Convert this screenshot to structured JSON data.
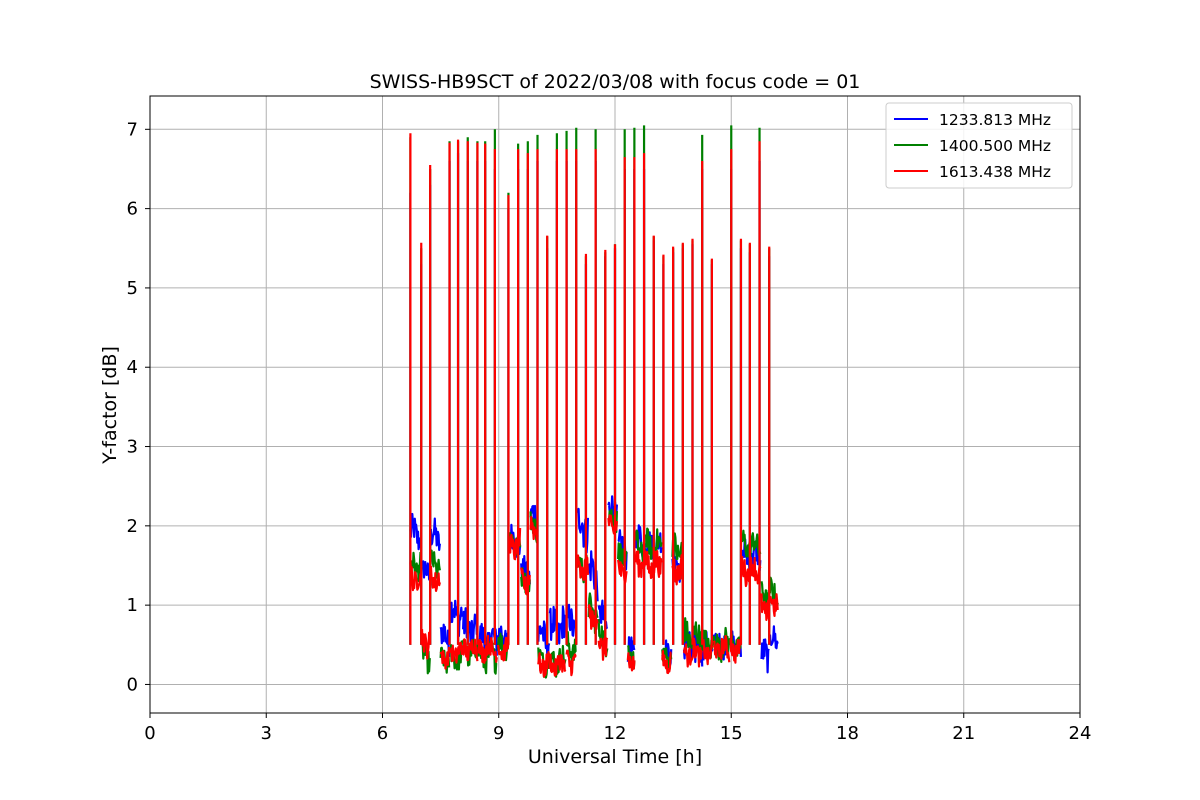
{
  "chart_data": {
    "type": "line",
    "title": "SWISS-HB9SCT of 2022/03/08 with focus code = 01",
    "xlabel": "Universal Time [h]",
    "ylabel": "Y-factor [dB]",
    "xlim": [
      0,
      24
    ],
    "ylim": [
      -0.36,
      7.42
    ],
    "xticks": [
      0,
      3,
      6,
      9,
      12,
      15,
      18,
      21,
      24
    ],
    "yticks": [
      0,
      1,
      2,
      3,
      4,
      5,
      6,
      7
    ],
    "grid": true,
    "legend_position": "top-right",
    "colors": {
      "1233.813 MHz": "#0000ff",
      "1400.500 MHz": "#008000",
      "1613.438 MHz": "#ff0000"
    },
    "series": [
      {
        "name": "1233.813 MHz",
        "color": "#0000ff",
        "segments": [
          {
            "x0": 6.72,
            "x1": 6.98,
            "baseline": 1.9,
            "spread": 0.35
          },
          {
            "x0": 7.02,
            "x1": 7.22,
            "baseline": 1.4,
            "spread": 0.3
          },
          {
            "x0": 7.25,
            "x1": 7.48,
            "baseline": 1.85,
            "spread": 0.35
          },
          {
            "x0": 7.5,
            "x1": 7.72,
            "baseline": 0.6,
            "spread": 0.35
          },
          {
            "x0": 7.75,
            "x1": 8.05,
            "baseline": 0.9,
            "spread": 0.4
          },
          {
            "x0": 8.08,
            "x1": 8.45,
            "baseline": 0.7,
            "spread": 0.4
          },
          {
            "x0": 8.48,
            "x1": 8.95,
            "baseline": 0.55,
            "spread": 0.35
          },
          {
            "x0": 8.98,
            "x1": 9.25,
            "baseline": 0.6,
            "spread": 0.3
          },
          {
            "x0": 9.28,
            "x1": 9.55,
            "baseline": 1.8,
            "spread": 0.35
          },
          {
            "x0": 9.58,
            "x1": 9.8,
            "baseline": 1.4,
            "spread": 0.3
          },
          {
            "x0": 9.82,
            "x1": 10.0,
            "baseline": 2.1,
            "spread": 0.35
          },
          {
            "x0": 10.02,
            "x1": 10.3,
            "baseline": 0.6,
            "spread": 0.45
          },
          {
            "x0": 10.32,
            "x1": 10.72,
            "baseline": 0.7,
            "spread": 0.45
          },
          {
            "x0": 10.75,
            "x1": 11.0,
            "baseline": 0.75,
            "spread": 0.4
          },
          {
            "x0": 11.03,
            "x1": 11.3,
            "baseline": 2.0,
            "spread": 0.5
          },
          {
            "x0": 11.32,
            "x1": 11.55,
            "baseline": 1.4,
            "spread": 0.5
          },
          {
            "x0": 11.58,
            "x1": 11.8,
            "baseline": 0.8,
            "spread": 0.4
          },
          {
            "x0": 11.83,
            "x1": 12.05,
            "baseline": 2.2,
            "spread": 0.3
          },
          {
            "x0": 12.08,
            "x1": 12.3,
            "baseline": 1.7,
            "spread": 0.35
          },
          {
            "x0": 12.33,
            "x1": 12.5,
            "baseline": 0.4,
            "spread": 0.3
          },
          {
            "x0": 12.53,
            "x1": 12.78,
            "baseline": 1.8,
            "spread": 0.35
          },
          {
            "x0": 12.8,
            "x1": 13.2,
            "baseline": 1.75,
            "spread": 0.3
          },
          {
            "x0": 13.22,
            "x1": 13.45,
            "baseline": 0.4,
            "spread": 0.25
          },
          {
            "x0": 13.48,
            "x1": 13.75,
            "baseline": 1.5,
            "spread": 0.3
          },
          {
            "x0": 13.78,
            "x1": 14.25,
            "baseline": 0.45,
            "spread": 0.45
          },
          {
            "x0": 14.28,
            "x1": 14.52,
            "baseline": 0.45,
            "spread": 0.3
          },
          {
            "x0": 14.55,
            "x1": 14.95,
            "baseline": 0.5,
            "spread": 0.3
          },
          {
            "x0": 14.98,
            "x1": 15.25,
            "baseline": 0.5,
            "spread": 0.3
          },
          {
            "x0": 15.28,
            "x1": 15.75,
            "baseline": 1.6,
            "spread": 0.35
          },
          {
            "x0": 15.78,
            "x1": 15.97,
            "baseline": 0.35,
            "spread": 0.35
          },
          {
            "x0": 16.0,
            "x1": 16.2,
            "baseline": 0.55,
            "spread": 0.3
          }
        ]
      },
      {
        "name": "1400.500 MHz",
        "color": "#008000",
        "segments": [
          {
            "x0": 6.72,
            "x1": 6.98,
            "baseline": 1.5,
            "spread": 0.3
          },
          {
            "x0": 7.02,
            "x1": 7.22,
            "baseline": 0.35,
            "spread": 0.3
          },
          {
            "x0": 7.25,
            "x1": 7.48,
            "baseline": 1.5,
            "spread": 0.3
          },
          {
            "x0": 7.5,
            "x1": 7.72,
            "baseline": 0.3,
            "spread": 0.25
          },
          {
            "x0": 7.75,
            "x1": 8.05,
            "baseline": 0.35,
            "spread": 0.3
          },
          {
            "x0": 8.08,
            "x1": 8.45,
            "baseline": 0.4,
            "spread": 0.3
          },
          {
            "x0": 8.48,
            "x1": 8.95,
            "baseline": 0.35,
            "spread": 0.3
          },
          {
            "x0": 8.98,
            "x1": 9.25,
            "baseline": 0.5,
            "spread": 0.3
          },
          {
            "x0": 9.28,
            "x1": 9.55,
            "baseline": 1.8,
            "spread": 0.3
          },
          {
            "x0": 9.58,
            "x1": 9.8,
            "baseline": 1.3,
            "spread": 0.25
          },
          {
            "x0": 9.82,
            "x1": 10.0,
            "baseline": 2.0,
            "spread": 0.3
          },
          {
            "x0": 10.02,
            "x1": 10.3,
            "baseline": 0.3,
            "spread": 0.3
          },
          {
            "x0": 10.32,
            "x1": 10.72,
            "baseline": 0.3,
            "spread": 0.3
          },
          {
            "x0": 10.75,
            "x1": 11.0,
            "baseline": 0.45,
            "spread": 0.3
          },
          {
            "x0": 11.03,
            "x1": 11.3,
            "baseline": 1.5,
            "spread": 0.3
          },
          {
            "x0": 11.32,
            "x1": 11.55,
            "baseline": 0.9,
            "spread": 0.35
          },
          {
            "x0": 11.58,
            "x1": 11.8,
            "baseline": 0.6,
            "spread": 0.35
          },
          {
            "x0": 11.83,
            "x1": 12.05,
            "baseline": 2.1,
            "spread": 0.3
          },
          {
            "x0": 12.08,
            "x1": 12.3,
            "baseline": 1.6,
            "spread": 0.3
          },
          {
            "x0": 12.33,
            "x1": 12.5,
            "baseline": 0.35,
            "spread": 0.25
          },
          {
            "x0": 12.53,
            "x1": 12.78,
            "baseline": 1.7,
            "spread": 0.35
          },
          {
            "x0": 12.8,
            "x1": 13.2,
            "baseline": 1.75,
            "spread": 0.3
          },
          {
            "x0": 13.22,
            "x1": 13.45,
            "baseline": 0.35,
            "spread": 0.25
          },
          {
            "x0": 13.48,
            "x1": 13.75,
            "baseline": 1.7,
            "spread": 0.35
          },
          {
            "x0": 13.78,
            "x1": 14.25,
            "baseline": 0.6,
            "spread": 0.35
          },
          {
            "x0": 14.28,
            "x1": 14.52,
            "baseline": 0.5,
            "spread": 0.3
          },
          {
            "x0": 14.55,
            "x1": 14.95,
            "baseline": 0.5,
            "spread": 0.3
          },
          {
            "x0": 14.98,
            "x1": 15.25,
            "baseline": 0.5,
            "spread": 0.3
          },
          {
            "x0": 15.28,
            "x1": 15.75,
            "baseline": 1.75,
            "spread": 0.3
          },
          {
            "x0": 15.78,
            "x1": 15.97,
            "baseline": 1.1,
            "spread": 0.3
          },
          {
            "x0": 16.0,
            "x1": 16.2,
            "baseline": 1.15,
            "spread": 0.3
          }
        ]
      },
      {
        "name": "1613.438 MHz",
        "color": "#ff0000",
        "segments": [
          {
            "x0": 6.72,
            "x1": 6.98,
            "baseline": 1.35,
            "spread": 0.3
          },
          {
            "x0": 7.02,
            "x1": 7.22,
            "baseline": 0.55,
            "spread": 0.3
          },
          {
            "x0": 7.25,
            "x1": 7.48,
            "baseline": 1.35,
            "spread": 0.3
          },
          {
            "x0": 7.5,
            "x1": 7.72,
            "baseline": 0.35,
            "spread": 0.2
          },
          {
            "x0": 7.75,
            "x1": 8.05,
            "baseline": 0.4,
            "spread": 0.25
          },
          {
            "x0": 8.08,
            "x1": 8.45,
            "baseline": 0.45,
            "spread": 0.25
          },
          {
            "x0": 8.48,
            "x1": 8.95,
            "baseline": 0.45,
            "spread": 0.25
          },
          {
            "x0": 8.98,
            "x1": 9.25,
            "baseline": 0.45,
            "spread": 0.25
          },
          {
            "x0": 9.28,
            "x1": 9.55,
            "baseline": 1.75,
            "spread": 0.3
          },
          {
            "x0": 9.58,
            "x1": 9.8,
            "baseline": 1.3,
            "spread": 0.25
          },
          {
            "x0": 9.82,
            "x1": 10.0,
            "baseline": 2.0,
            "spread": 0.3
          },
          {
            "x0": 10.02,
            "x1": 10.3,
            "baseline": 0.25,
            "spread": 0.25
          },
          {
            "x0": 10.32,
            "x1": 10.72,
            "baseline": 0.25,
            "spread": 0.25
          },
          {
            "x0": 10.75,
            "x1": 11.0,
            "baseline": 0.3,
            "spread": 0.25
          },
          {
            "x0": 11.03,
            "x1": 11.3,
            "baseline": 1.45,
            "spread": 0.3
          },
          {
            "x0": 11.32,
            "x1": 11.55,
            "baseline": 0.85,
            "spread": 0.3
          },
          {
            "x0": 11.58,
            "x1": 11.8,
            "baseline": 0.5,
            "spread": 0.3
          },
          {
            "x0": 11.83,
            "x1": 12.05,
            "baseline": 2.0,
            "spread": 0.3
          },
          {
            "x0": 12.08,
            "x1": 12.3,
            "baseline": 1.45,
            "spread": 0.3
          },
          {
            "x0": 12.33,
            "x1": 12.5,
            "baseline": 0.3,
            "spread": 0.25
          },
          {
            "x0": 12.53,
            "x1": 12.78,
            "baseline": 1.55,
            "spread": 0.3
          },
          {
            "x0": 12.8,
            "x1": 13.2,
            "baseline": 1.5,
            "spread": 0.3
          },
          {
            "x0": 13.22,
            "x1": 13.45,
            "baseline": 0.3,
            "spread": 0.25
          },
          {
            "x0": 13.48,
            "x1": 13.75,
            "baseline": 1.45,
            "spread": 0.3
          },
          {
            "x0": 13.78,
            "x1": 14.25,
            "baseline": 0.4,
            "spread": 0.25
          },
          {
            "x0": 14.28,
            "x1": 14.52,
            "baseline": 0.4,
            "spread": 0.25
          },
          {
            "x0": 14.55,
            "x1": 14.95,
            "baseline": 0.45,
            "spread": 0.25
          },
          {
            "x0": 14.98,
            "x1": 15.25,
            "baseline": 0.45,
            "spread": 0.25
          },
          {
            "x0": 15.28,
            "x1": 15.75,
            "baseline": 1.45,
            "spread": 0.3
          },
          {
            "x0": 15.78,
            "x1": 15.97,
            "baseline": 0.95,
            "spread": 0.3
          },
          {
            "x0": 16.0,
            "x1": 16.2,
            "baseline": 1.05,
            "spread": 0.3
          }
        ]
      }
    ],
    "spikes": [
      {
        "x": 6.72,
        "y1233": 6.2,
        "y1400": 6.9,
        "y1613": 6.95
      },
      {
        "x": 7.0,
        "y1233": 5.3,
        "y1400": 5.5,
        "y1613": 5.57
      },
      {
        "x": 7.23,
        "y1233": 6.3,
        "y1400": 6.5,
        "y1613": 6.55
      },
      {
        "x": 7.73,
        "y1233": 6.6,
        "y1400": 6.85,
        "y1613": 6.83
      },
      {
        "x": 7.95,
        "y1233": 6.7,
        "y1400": 6.85,
        "y1613": 6.87
      },
      {
        "x": 8.2,
        "y1233": 6.6,
        "y1400": 6.9,
        "y1613": 6.85
      },
      {
        "x": 8.45,
        "y1233": 6.6,
        "y1400": 6.85,
        "y1613": 6.83
      },
      {
        "x": 8.65,
        "y1233": 6.6,
        "y1400": 6.85,
        "y1613": 6.82
      },
      {
        "x": 8.9,
        "y1233": 6.5,
        "y1400": 7.0,
        "y1613": 6.75
      },
      {
        "x": 9.25,
        "y1233": 6.0,
        "y1400": 6.2,
        "y1613": 6.17
      },
      {
        "x": 9.5,
        "y1233": 6.5,
        "y1400": 6.82,
        "y1613": 6.75
      },
      {
        "x": 9.75,
        "y1233": 6.5,
        "y1400": 6.85,
        "y1613": 6.7
      },
      {
        "x": 10.0,
        "y1233": 6.6,
        "y1400": 6.93,
        "y1613": 6.75
      },
      {
        "x": 10.25,
        "y1233": 5.5,
        "y1400": 5.65,
        "y1613": 5.66
      },
      {
        "x": 10.5,
        "y1233": 6.6,
        "y1400": 6.95,
        "y1613": 6.75
      },
      {
        "x": 10.75,
        "y1233": 6.6,
        "y1400": 6.98,
        "y1613": 6.75
      },
      {
        "x": 11.0,
        "y1233": 6.6,
        "y1400": 7.02,
        "y1613": 6.75
      },
      {
        "x": 11.25,
        "y1233": 5.3,
        "y1400": 5.4,
        "y1613": 5.43
      },
      {
        "x": 11.5,
        "y1233": 6.6,
        "y1400": 7.0,
        "y1613": 6.75
      },
      {
        "x": 11.75,
        "y1233": 5.4,
        "y1400": 5.45,
        "y1613": 5.48
      },
      {
        "x": 12.0,
        "y1233": 5.5,
        "y1400": 5.55,
        "y1613": 5.55
      },
      {
        "x": 12.25,
        "y1233": 6.5,
        "y1400": 7.0,
        "y1613": 6.65
      },
      {
        "x": 12.5,
        "y1233": 6.5,
        "y1400": 7.02,
        "y1613": 6.65
      },
      {
        "x": 12.75,
        "y1233": 6.5,
        "y1400": 7.05,
        "y1613": 6.7
      },
      {
        "x": 13.0,
        "y1233": 5.6,
        "y1400": 5.65,
        "y1613": 5.66
      },
      {
        "x": 13.25,
        "y1233": 5.3,
        "y1400": 5.4,
        "y1613": 5.42
      },
      {
        "x": 13.5,
        "y1233": 5.45,
        "y1400": 5.5,
        "y1613": 5.52
      },
      {
        "x": 13.75,
        "y1233": 5.5,
        "y1400": 5.55,
        "y1613": 5.57
      },
      {
        "x": 14.0,
        "y1233": 5.55,
        "y1400": 5.6,
        "y1613": 5.62
      },
      {
        "x": 14.25,
        "y1233": 6.5,
        "y1400": 6.93,
        "y1613": 6.6
      },
      {
        "x": 14.5,
        "y1233": 5.3,
        "y1400": 5.35,
        "y1613": 5.37
      },
      {
        "x": 15.0,
        "y1233": 6.5,
        "y1400": 7.05,
        "y1613": 6.75
      },
      {
        "x": 15.25,
        "y1233": 5.5,
        "y1400": 5.6,
        "y1613": 5.62
      },
      {
        "x": 15.48,
        "y1233": 5.45,
        "y1400": 5.55,
        "y1613": 5.57
      },
      {
        "x": 15.73,
        "y1233": 6.6,
        "y1400": 7.02,
        "y1613": 6.85
      },
      {
        "x": 15.98,
        "y1233": 5.4,
        "y1400": 5.5,
        "y1613": 5.52
      }
    ]
  }
}
